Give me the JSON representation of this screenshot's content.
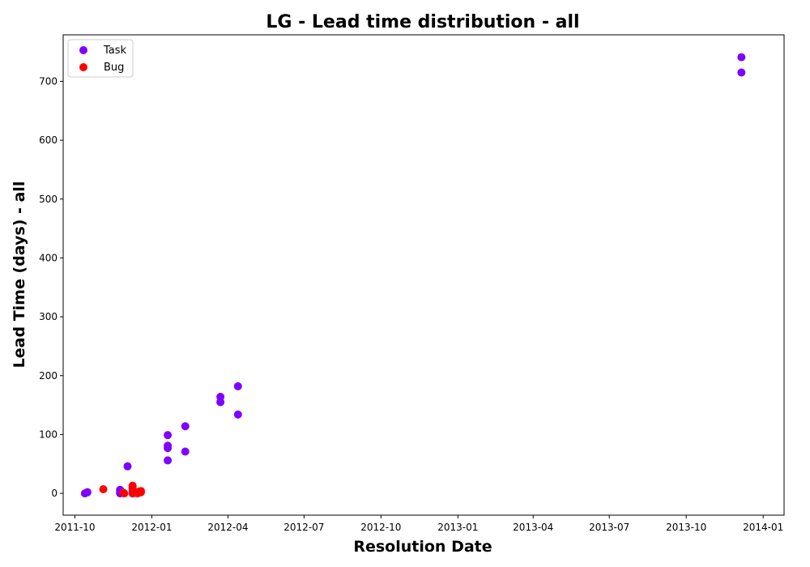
{
  "chart_data": {
    "type": "scatter",
    "title": "LG - Lead time distribution - all",
    "xlabel": "Resolution Date",
    "ylabel": "Lead Time (days) - all",
    "x_type": "date",
    "xlim": [
      "2011-09-17",
      "2014-01-26"
    ],
    "ylim": [
      -37,
      779
    ],
    "x_ticks": [
      "2011-10-01",
      "2012-01-01",
      "2012-04-01",
      "2012-07-01",
      "2012-10-01",
      "2013-01-01",
      "2013-04-01",
      "2013-07-01",
      "2013-10-01",
      "2014-01-01"
    ],
    "x_tick_labels": [
      "2011-10",
      "2012-01",
      "2012-04",
      "2012-07",
      "2012-10",
      "2013-01",
      "2013-04",
      "2013-07",
      "2013-10",
      "2014-01"
    ],
    "y_ticks": [
      0,
      100,
      200,
      300,
      400,
      500,
      600,
      700
    ],
    "y_tick_labels": [
      "0",
      "100",
      "200",
      "300",
      "400",
      "500",
      "600",
      "700"
    ],
    "grid": false,
    "legend_position": "top-left",
    "series": [
      {
        "name": "Task",
        "color": "#8000ff",
        "points": [
          {
            "x": "2011-10-13",
            "y": 0
          },
          {
            "x": "2011-10-16",
            "y": 2
          },
          {
            "x": "2011-11-24",
            "y": 6
          },
          {
            "x": "2011-11-24",
            "y": 1
          },
          {
            "x": "2011-11-24",
            "y": 0
          },
          {
            "x": "2011-12-03",
            "y": 46
          },
          {
            "x": "2011-12-09",
            "y": 8
          },
          {
            "x": "2011-12-09",
            "y": 3
          },
          {
            "x": "2011-12-09",
            "y": 0
          },
          {
            "x": "2012-01-20",
            "y": 99
          },
          {
            "x": "2012-01-20",
            "y": 81
          },
          {
            "x": "2012-01-20",
            "y": 77
          },
          {
            "x": "2012-01-20",
            "y": 56
          },
          {
            "x": "2012-02-10",
            "y": 114
          },
          {
            "x": "2012-02-10",
            "y": 71
          },
          {
            "x": "2012-03-23",
            "y": 164
          },
          {
            "x": "2012-03-23",
            "y": 155
          },
          {
            "x": "2012-04-13",
            "y": 182
          },
          {
            "x": "2012-04-13",
            "y": 134
          },
          {
            "x": "2013-12-06",
            "y": 741
          },
          {
            "x": "2013-12-06",
            "y": 715
          }
        ]
      },
      {
        "name": "Bug",
        "color": "#ff0000",
        "points": [
          {
            "x": "2011-11-04",
            "y": 7
          },
          {
            "x": "2011-11-28",
            "y": 1
          },
          {
            "x": "2011-11-29",
            "y": 0
          },
          {
            "x": "2011-12-09",
            "y": 13
          },
          {
            "x": "2011-12-09",
            "y": 10
          },
          {
            "x": "2011-12-09",
            "y": 0
          },
          {
            "x": "2011-12-10",
            "y": 2
          },
          {
            "x": "2011-12-12",
            "y": 1
          },
          {
            "x": "2011-12-15",
            "y": 0
          },
          {
            "x": "2011-12-17",
            "y": 3
          },
          {
            "x": "2011-12-19",
            "y": 4
          },
          {
            "x": "2011-12-19",
            "y": 2
          }
        ]
      }
    ]
  }
}
